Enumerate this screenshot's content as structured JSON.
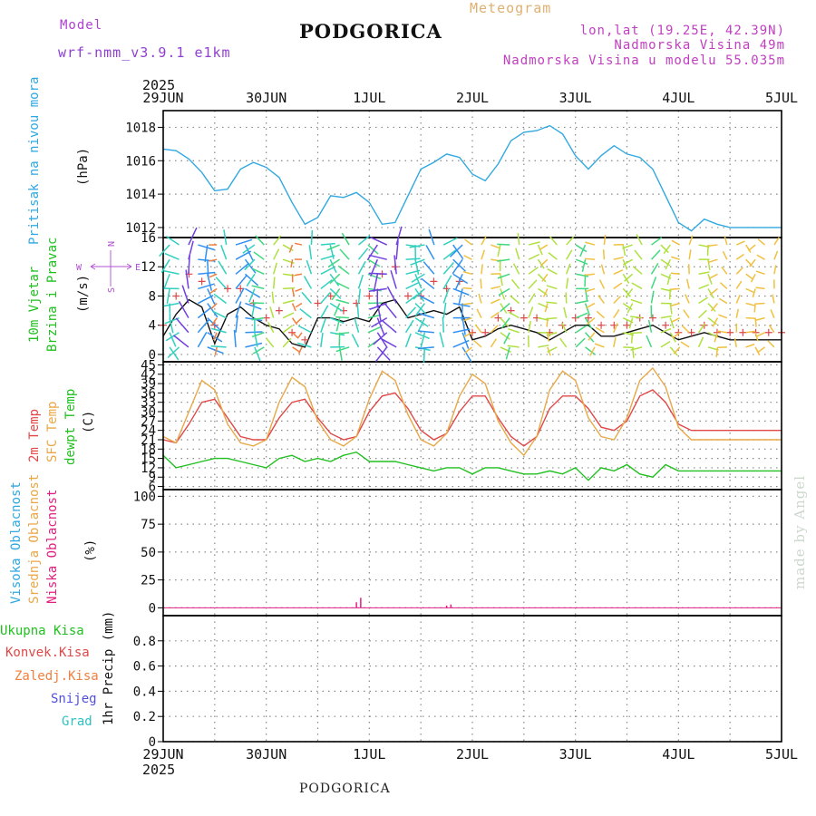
{
  "header": {
    "model_label": "Model",
    "model_name": "wrf-nmm_v3.9.1  e1km",
    "product": "Meteogram",
    "city": "PODGORICA",
    "lonlat": "lon,lat (19.25E, 42.39N)",
    "elevation": "Nadmorska Visina 49m",
    "model_elevation": "Nadmorska Visina u modelu 55.035m",
    "footer_city": "PODGORICA",
    "credit": "made by Angel"
  },
  "colors": {
    "pressure": "#30a8e0",
    "temp2m": "#e04848",
    "sfc_temp": "#e8a848",
    "dewpoint": "#20c020",
    "wind_speed": "#101010",
    "gust": "#e04848",
    "low_cloud": "#e02080",
    "axis_frame": "#000000",
    "grid_dots": "#888888"
  },
  "chart_data": [
    {
      "type": "line",
      "panel": "pressure",
      "ylabel_main": "Pritisak na nivou mora",
      "ylabel_unit": "(hPa)",
      "ylim": [
        1011.4,
        1019.0
      ],
      "yticks": [
        1012,
        1014,
        1016,
        1018
      ],
      "x": [
        0,
        3,
        6,
        9,
        12,
        15,
        18,
        21,
        24,
        27,
        30,
        33,
        36,
        39,
        42,
        45,
        48,
        51,
        54,
        57,
        60,
        63,
        66,
        69,
        72,
        75,
        78,
        81,
        84,
        87,
        90,
        93,
        96,
        99,
        102,
        105,
        108,
        111,
        114,
        117,
        120,
        123,
        126,
        129,
        132,
        135,
        138,
        141,
        144
      ],
      "series": [
        {
          "values": [
            1016.7,
            1016.6,
            1016.1,
            1015.3,
            1014.2,
            1014.3,
            1015.5,
            1015.9,
            1015.6,
            1015.0,
            1013.5,
            1012.2,
            1012.6,
            1013.9,
            1013.8,
            1014.1,
            1013.5,
            1012.2,
            1012.3,
            1013.9,
            1015.5,
            1015.9,
            1016.4,
            1016.2,
            1015.2,
            1014.8,
            1015.8,
            1017.2,
            1017.7,
            1017.8,
            1018.1,
            1017.6,
            1016.3,
            1015.5,
            1016.3,
            1016.9,
            1016.4,
            1016.2,
            1015.5,
            1013.9,
            1012.3,
            1011.8,
            1012.5,
            1012.2,
            1012.0,
            1012.0,
            1012.0,
            1012.0,
            1012.0
          ]
        }
      ]
    },
    {
      "type": "line",
      "panel": "wind",
      "ylabel_main": "10m Vjetar",
      "ylabel_sub": "Brzina i Pravac",
      "ylabel_unit": "(m/s)",
      "compass": {
        "n": "N",
        "s": "S",
        "w": "W",
        "e": "E"
      },
      "ylim": [
        -1,
        16
      ],
      "yticks": [
        0,
        4,
        8,
        12,
        16
      ],
      "x": [
        0,
        3,
        6,
        9,
        12,
        15,
        18,
        21,
        24,
        27,
        30,
        33,
        36,
        39,
        42,
        45,
        48,
        51,
        54,
        57,
        60,
        63,
        66,
        69,
        72,
        75,
        78,
        81,
        84,
        87,
        90,
        93,
        96,
        99,
        102,
        105,
        108,
        111,
        114,
        117,
        120,
        123,
        126,
        129,
        132,
        135,
        138,
        141,
        144
      ],
      "series": [
        {
          "name": "speed",
          "values": [
            2.5,
            5.5,
            7.5,
            6.5,
            1.5,
            5.5,
            6.5,
            5.0,
            4.0,
            3.5,
            1.5,
            1.0,
            5.0,
            5.0,
            4.5,
            5.0,
            4.5,
            7.0,
            7.5,
            5.0,
            5.5,
            6.0,
            5.5,
            6.5,
            2.0,
            2.5,
            3.5,
            4.0,
            3.5,
            3.0,
            2.0,
            3.0,
            4.0,
            4.0,
            2.5,
            2.5,
            3.0,
            3.5,
            4.0,
            3.0,
            2.0,
            2.5,
            3.0,
            2.5,
            2.0,
            2.0,
            2.0,
            2.0,
            2.0
          ]
        },
        {
          "name": "gust",
          "values": [
            4,
            8,
            11,
            10,
            4,
            9,
            9,
            7,
            5,
            6,
            3,
            2,
            7,
            8,
            6,
            7,
            8,
            11,
            12,
            8,
            8,
            10,
            9,
            10,
            3,
            3,
            5,
            6,
            5,
            5,
            3,
            4,
            5,
            5,
            4,
            4,
            4,
            5,
            5,
            4,
            3,
            3,
            4,
            3,
            3,
            3,
            3,
            3,
            3
          ]
        }
      ]
    },
    {
      "type": "line",
      "panel": "temperature",
      "ylabel_lines": [
        "2m Temp",
        "SFC Temp",
        "dewpt Temp"
      ],
      "ylabel_unit": "(C)",
      "ylim": [
        5,
        46
      ],
      "yticks": [
        6,
        9,
        12,
        15,
        18,
        21,
        24,
        27,
        30,
        33,
        36,
        39,
        42,
        45
      ],
      "x": [
        0,
        3,
        6,
        9,
        12,
        15,
        18,
        21,
        24,
        27,
        30,
        33,
        36,
        39,
        42,
        45,
        48,
        51,
        54,
        57,
        60,
        63,
        66,
        69,
        72,
        75,
        78,
        81,
        84,
        87,
        90,
        93,
        96,
        99,
        102,
        105,
        108,
        111,
        114,
        117,
        120,
        123,
        126,
        129,
        132,
        135,
        138,
        141,
        144
      ],
      "series": [
        {
          "name": "2m Temp",
          "values": [
            21,
            20,
            26,
            33,
            34,
            28,
            22,
            21,
            21,
            28,
            33,
            34,
            28,
            23,
            21,
            22,
            30,
            35,
            36,
            31,
            24,
            21,
            23,
            30,
            35,
            35,
            28,
            22,
            19,
            22,
            31,
            35,
            35,
            31,
            25,
            24,
            27,
            35,
            37,
            33,
            26,
            24,
            24,
            24,
            24,
            24,
            24,
            24,
            24
          ]
        },
        {
          "name": "SFC Temp",
          "values": [
            22,
            20,
            30,
            40,
            37,
            26,
            20,
            19,
            21,
            33,
            41,
            38,
            27,
            21,
            19,
            22,
            34,
            43,
            40,
            29,
            21,
            19,
            23,
            35,
            42,
            39,
            27,
            20,
            16,
            22,
            37,
            43,
            40,
            28,
            22,
            21,
            28,
            40,
            44,
            38,
            25,
            21,
            21,
            21,
            21,
            21,
            21,
            21,
            21
          ]
        },
        {
          "name": "dewpt Temp",
          "values": [
            16,
            12,
            13,
            14,
            15,
            15,
            14,
            13,
            12,
            15,
            16,
            14,
            15,
            14,
            16,
            17,
            14,
            14,
            14,
            13,
            12,
            11,
            12,
            12,
            10,
            12,
            12,
            11,
            10,
            10,
            11,
            10,
            12,
            8,
            12,
            11,
            13,
            10,
            9,
            13,
            11,
            11,
            11,
            11,
            11,
            11,
            11,
            11,
            11
          ]
        }
      ]
    },
    {
      "type": "bar",
      "panel": "clouds",
      "ylabel_lines": [
        "Visoka Oblacnost",
        "Srednja Oblacnost",
        "Niska Oblacnost"
      ],
      "ylabel_unit": "(%)",
      "ylim": [
        -7,
        106
      ],
      "yticks": [
        0,
        25,
        50,
        75,
        100
      ],
      "series": [
        {
          "name": "Niska Oblacnost",
          "x": [
            45,
            46,
            66,
            67
          ],
          "values": [
            5,
            9,
            2,
            3
          ]
        }
      ]
    },
    {
      "type": "bar",
      "panel": "precip",
      "ylabel_lines": [
        "Ukupna Kisa",
        "Konvek.Kisa",
        "Zaledj.Kisa",
        "Snijeg",
        "Grad"
      ],
      "ylabel_unit": "1hr Precip (mm)",
      "ylim": [
        0,
        1.0
      ],
      "yticks": [
        0,
        0.2,
        0.4,
        0.6,
        0.8
      ],
      "series": [
        {
          "name": "Ukupna Kisa",
          "x": [],
          "values": []
        }
      ]
    }
  ],
  "time_axis": {
    "year": "2025",
    "range_hours": [
      0,
      144
    ],
    "labels": [
      "29JUN",
      "30JUN",
      "1JUL",
      "2JUL",
      "3JUL",
      "4JUL",
      "5JUL"
    ]
  }
}
